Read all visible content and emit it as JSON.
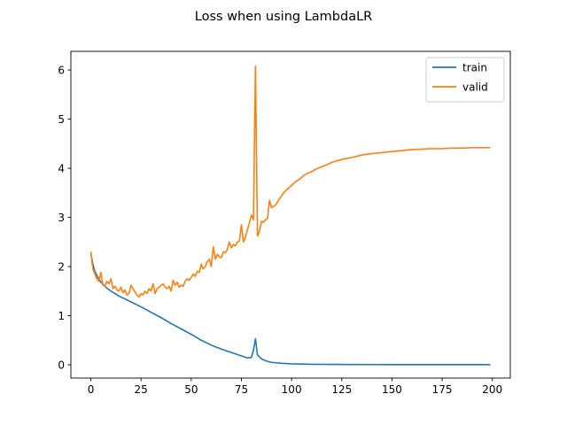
{
  "chart_data": {
    "type": "line",
    "title": "Loss when using LambdaLR",
    "xlabel": "",
    "ylabel": "",
    "xlim": [
      -9.95,
      208.95
    ],
    "ylim": [
      -0.27,
      6.38
    ],
    "grid": false,
    "legend_position": "top-right",
    "xticks": [
      0,
      25,
      50,
      75,
      100,
      125,
      150,
      175,
      200
    ],
    "yticks": [
      0,
      1,
      2,
      3,
      4,
      5,
      6
    ],
    "series": [
      {
        "name": "train",
        "color": "#1f77b4",
        "x": [
          0,
          1,
          2,
          3,
          4,
          5,
          6,
          7,
          8,
          10,
          12,
          14,
          16,
          18,
          20,
          25,
          30,
          35,
          40,
          45,
          50,
          55,
          60,
          65,
          70,
          75,
          78,
          80,
          81,
          82,
          83,
          85,
          88,
          90,
          95,
          100,
          105,
          110,
          120,
          130,
          140,
          150,
          160,
          170,
          180,
          190,
          199
        ],
        "y": [
          2.28,
          2.05,
          1.9,
          1.82,
          1.75,
          1.68,
          1.64,
          1.6,
          1.56,
          1.5,
          1.45,
          1.4,
          1.36,
          1.32,
          1.28,
          1.18,
          1.07,
          0.96,
          0.84,
          0.73,
          0.62,
          0.5,
          0.4,
          0.32,
          0.25,
          0.18,
          0.14,
          0.15,
          0.3,
          0.53,
          0.2,
          0.12,
          0.07,
          0.05,
          0.03,
          0.02,
          0.015,
          0.01,
          0.008,
          0.006,
          0.005,
          0.004,
          0.004,
          0.003,
          0.003,
          0.003,
          0.003
        ]
      },
      {
        "name": "valid",
        "color": "#ff7f0e",
        "x": [
          0,
          1,
          2,
          3,
          4,
          5,
          6,
          7,
          8,
          9,
          10,
          11,
          12,
          13,
          14,
          15,
          16,
          17,
          18,
          19,
          20,
          21,
          22,
          23,
          24,
          25,
          26,
          27,
          28,
          29,
          30,
          31,
          32,
          33,
          34,
          35,
          36,
          37,
          38,
          39,
          40,
          41,
          42,
          43,
          44,
          45,
          46,
          47,
          48,
          49,
          50,
          51,
          52,
          53,
          54,
          55,
          56,
          57,
          58,
          59,
          60,
          61,
          62,
          63,
          64,
          65,
          66,
          67,
          68,
          69,
          70,
          71,
          72,
          73,
          74,
          75,
          76,
          77,
          78,
          79,
          80,
          81,
          82,
          83,
          84,
          85,
          86,
          87,
          88,
          89,
          90,
          92,
          94,
          96,
          98,
          100,
          102,
          104,
          106,
          108,
          110,
          112,
          115,
          118,
          120,
          125,
          130,
          135,
          140,
          145,
          150,
          155,
          160,
          165,
          170,
          175,
          180,
          185,
          190,
          195,
          199
        ],
        "y": [
          2.3,
          1.95,
          1.85,
          1.75,
          1.7,
          1.88,
          1.62,
          1.6,
          1.7,
          1.65,
          1.75,
          1.55,
          1.6,
          1.52,
          1.5,
          1.58,
          1.47,
          1.52,
          1.42,
          1.45,
          1.62,
          1.55,
          1.48,
          1.42,
          1.38,
          1.45,
          1.42,
          1.5,
          1.45,
          1.55,
          1.5,
          1.65,
          1.45,
          1.55,
          1.58,
          1.62,
          1.65,
          1.58,
          1.55,
          1.6,
          1.5,
          1.72,
          1.62,
          1.68,
          1.58,
          1.62,
          1.6,
          1.7,
          1.75,
          1.72,
          1.78,
          1.85,
          1.8,
          1.9,
          1.88,
          2.05,
          1.95,
          2.0,
          2.1,
          2.15,
          2.0,
          2.4,
          2.15,
          2.25,
          2.2,
          2.18,
          2.3,
          2.28,
          2.35,
          2.5,
          2.38,
          2.45,
          2.42,
          2.5,
          2.52,
          2.85,
          2.5,
          2.6,
          2.75,
          2.9,
          3.05,
          2.95,
          6.08,
          2.62,
          2.72,
          2.92,
          2.9,
          2.95,
          2.98,
          3.35,
          3.2,
          3.25,
          3.38,
          3.5,
          3.58,
          3.65,
          3.73,
          3.78,
          3.85,
          3.9,
          3.93,
          3.98,
          4.03,
          4.08,
          4.12,
          4.18,
          4.22,
          4.27,
          4.3,
          4.32,
          4.34,
          4.36,
          4.38,
          4.39,
          4.4,
          4.4,
          4.41,
          4.41,
          4.42,
          4.42,
          4.42
        ]
      }
    ]
  }
}
